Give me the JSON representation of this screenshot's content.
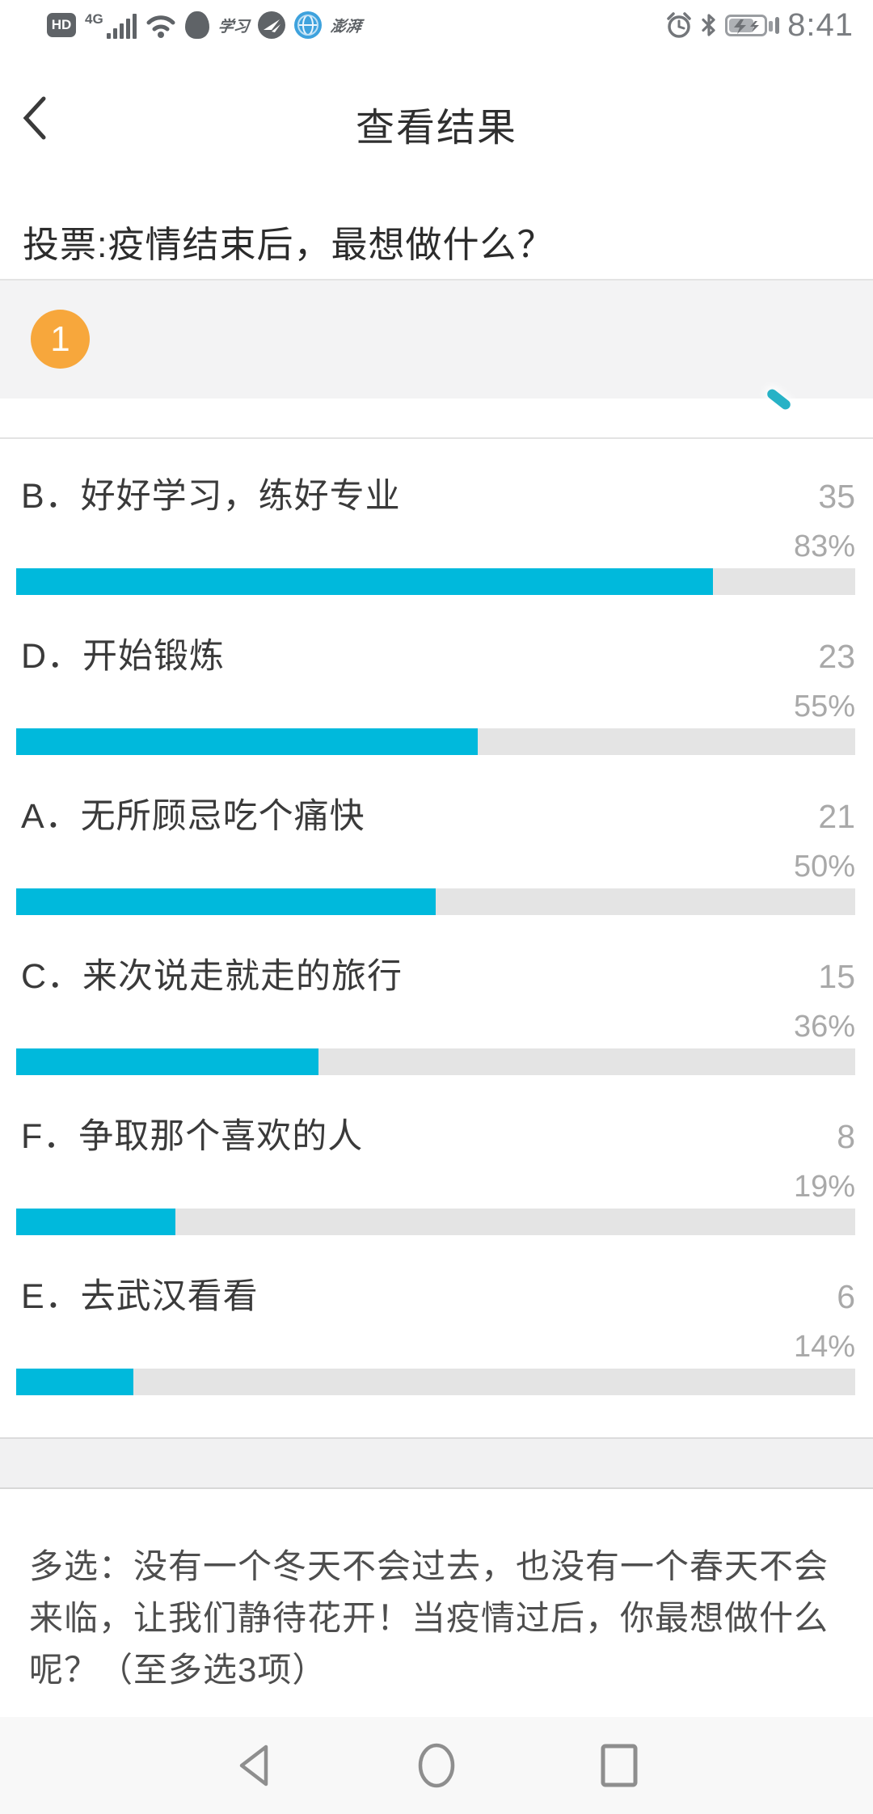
{
  "status_bar": {
    "time": "8:41",
    "hd_label": "HD",
    "network_label": "4G",
    "study_label": "学习",
    "pengpai_label": "澎湃"
  },
  "header": {
    "title": "查看结果"
  },
  "poll": {
    "question_number": "1",
    "title": "投票:疫情结束后，最想做什么？"
  },
  "results": [
    {
      "label": "B．好好学习，练好专业",
      "count": "35",
      "percent": "83%",
      "percent_value": 83
    },
    {
      "label": "D．开始锻炼",
      "count": "23",
      "percent": "55%",
      "percent_value": 55
    },
    {
      "label": "A．无所顾忌吃个痛快",
      "count": "21",
      "percent": "50%",
      "percent_value": 50
    },
    {
      "label": "C．来次说走就走的旅行",
      "count": "15",
      "percent": "36%",
      "percent_value": 36
    },
    {
      "label": "F．争取那个喜欢的人",
      "count": "8",
      "percent": "19%",
      "percent_value": 19
    },
    {
      "label": "E．去武汉看看",
      "count": "6",
      "percent": "14%",
      "percent_value": 14
    }
  ],
  "footer": {
    "question": "多选：没有一个冬天不会过去，也没有一个春天不会来临，让我们静待花开！当疫情过后，你最想做什么呢？（至多选3项）"
  },
  "colors": {
    "accent": "#00b9dc",
    "badge": "#f7a73c",
    "track": "#e4e4e4"
  }
}
